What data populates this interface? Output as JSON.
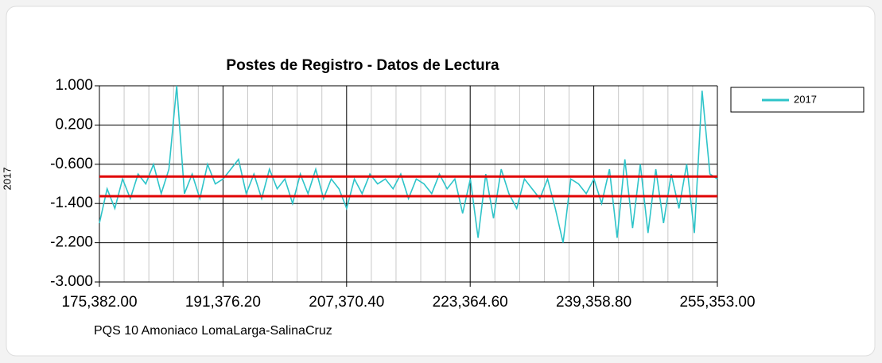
{
  "chart_data": {
    "type": "line",
    "title": "Postes de Registro - Datos de Lectura",
    "x_label": "PQS 10 Amoniaco LomaLarga-SalinaCruz",
    "y_label": "2017",
    "x": [
      175382,
      176382,
      177382,
      178382,
      179382,
      180382,
      181382,
      182382,
      183382,
      184382,
      185382,
      186382,
      187382,
      188382,
      189382,
      190382,
      191382,
      192382,
      193382,
      194382,
      195382,
      196382,
      197382,
      198382,
      199382,
      200382,
      201382,
      202382,
      203382,
      204382,
      205382,
      206382,
      207382,
      208382,
      209382,
      210382,
      211382,
      212382,
      213382,
      214382,
      215382,
      216382,
      217382,
      218382,
      219382,
      220382,
      221382,
      222382,
      223382,
      224382,
      225382,
      226382,
      227382,
      228382,
      229382,
      230382,
      231382,
      232382,
      233382,
      234382,
      235382,
      236382,
      237382,
      238382,
      239382,
      240382,
      241382,
      242382,
      243382,
      244382,
      245382,
      246382,
      247382,
      248382,
      249382,
      250382,
      251382,
      252382,
      253382,
      254382,
      255353
    ],
    "series": [
      {
        "name": "2017",
        "color": "#2ec4c9",
        "values": [
          -1.8,
          -1.1,
          -1.5,
          -0.9,
          -1.3,
          -0.8,
          -1.0,
          -0.6,
          -1.2,
          -0.7,
          1.0,
          -1.2,
          -0.8,
          -1.3,
          -0.6,
          -1.0,
          -0.9,
          -0.7,
          -0.5,
          -1.2,
          -0.8,
          -1.3,
          -0.7,
          -1.1,
          -0.9,
          -1.4,
          -0.8,
          -1.2,
          -0.7,
          -1.3,
          -0.9,
          -1.1,
          -1.5,
          -0.9,
          -1.2,
          -0.8,
          -1.0,
          -0.9,
          -1.1,
          -0.8,
          -1.3,
          -0.9,
          -1.0,
          -1.2,
          -0.8,
          -1.1,
          -0.9,
          -1.6,
          -0.9,
          -2.1,
          -0.8,
          -1.7,
          -0.7,
          -1.2,
          -1.5,
          -0.9,
          -1.1,
          -1.3,
          -0.9,
          -1.5,
          -2.2,
          -0.9,
          -1.0,
          -1.2,
          -0.9,
          -1.4,
          -0.7,
          -2.1,
          -0.5,
          -1.9,
          -0.6,
          -2.0,
          -0.7,
          -1.8,
          -0.8,
          -1.5,
          -0.6,
          -2.0,
          0.9,
          -0.8,
          -0.9
        ]
      }
    ],
    "reference_lines": [
      -0.85,
      -1.25
    ],
    "reference_color": "#e00000",
    "xlim": [
      175382,
      255353
    ],
    "xticks": [
      {
        "value": 175382,
        "label": "175,382.00"
      },
      {
        "value": 191376.2,
        "label": "191,376.20"
      },
      {
        "value": 207370.4,
        "label": "207,370.40"
      },
      {
        "value": 223364.6,
        "label": "223,364.60"
      },
      {
        "value": 239358.8,
        "label": "239,358.80"
      },
      {
        "value": 255353,
        "label": "255,353.00"
      }
    ],
    "ylim": [
      -3,
      1
    ],
    "yticks": [
      {
        "value": 1,
        "label": "1.000"
      },
      {
        "value": 0.2,
        "label": "0.200"
      },
      {
        "value": -0.6,
        "label": "-0.600"
      },
      {
        "value": -1.4,
        "label": "-1.400"
      },
      {
        "value": -2.2,
        "label": "-2.200"
      },
      {
        "value": -3,
        "label": "-3.000"
      }
    ],
    "grid": true,
    "legend": "right"
  }
}
